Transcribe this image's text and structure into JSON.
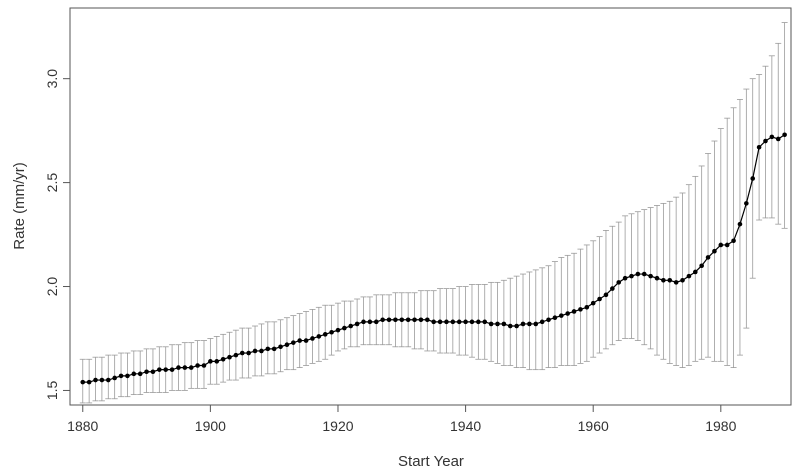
{
  "chart_data": {
    "type": "line",
    "title": "",
    "xlabel": "Start Year",
    "ylabel": "Rate (mm/yr)",
    "xlim": [
      1878,
      1991
    ],
    "ylim": [
      1.43,
      3.34
    ],
    "xticks": [
      1880,
      1900,
      1920,
      1940,
      1960,
      1980
    ],
    "yticks": [
      1.5,
      2.0,
      2.5,
      3.0
    ],
    "ytick_labels": [
      "1.5",
      "2.0",
      "2.5",
      "3.0"
    ],
    "grid": false,
    "legend": "none",
    "series": [
      {
        "x": [
          1880,
          1881,
          1882,
          1883,
          1884,
          1885,
          1886,
          1887,
          1888,
          1889,
          1890,
          1891,
          1892,
          1893,
          1894,
          1895,
          1896,
          1897,
          1898,
          1899,
          1900,
          1901,
          1902,
          1903,
          1904,
          1905,
          1906,
          1907,
          1908,
          1909,
          1910,
          1911,
          1912,
          1913,
          1914,
          1915,
          1916,
          1917,
          1918,
          1919,
          1920,
          1921,
          1922,
          1923,
          1924,
          1925,
          1926,
          1927,
          1928,
          1929,
          1930,
          1931,
          1932,
          1933,
          1934,
          1935,
          1936,
          1937,
          1938,
          1939,
          1940,
          1941,
          1942,
          1943,
          1944,
          1945,
          1946,
          1947,
          1948,
          1949,
          1950,
          1951,
          1952,
          1953,
          1954,
          1955,
          1956,
          1957,
          1958,
          1959,
          1960,
          1961,
          1962,
          1963,
          1964,
          1965,
          1966,
          1967,
          1968,
          1969,
          1970,
          1971,
          1972,
          1973,
          1974,
          1975,
          1976,
          1977,
          1978,
          1979,
          1980,
          1981,
          1982,
          1983,
          1984,
          1985,
          1986,
          1987,
          1988,
          1989,
          1990
        ],
        "y": [
          1.54,
          1.54,
          1.55,
          1.55,
          1.55,
          1.56,
          1.57,
          1.57,
          1.58,
          1.58,
          1.59,
          1.59,
          1.6,
          1.6,
          1.6,
          1.61,
          1.61,
          1.61,
          1.62,
          1.62,
          1.64,
          1.64,
          1.65,
          1.66,
          1.67,
          1.68,
          1.68,
          1.69,
          1.69,
          1.7,
          1.7,
          1.71,
          1.72,
          1.73,
          1.74,
          1.74,
          1.75,
          1.76,
          1.77,
          1.78,
          1.79,
          1.8,
          1.81,
          1.82,
          1.83,
          1.83,
          1.83,
          1.84,
          1.84,
          1.84,
          1.84,
          1.84,
          1.84,
          1.84,
          1.84,
          1.83,
          1.83,
          1.83,
          1.83,
          1.83,
          1.83,
          1.83,
          1.83,
          1.83,
          1.82,
          1.82,
          1.82,
          1.81,
          1.81,
          1.82,
          1.82,
          1.82,
          1.83,
          1.84,
          1.85,
          1.86,
          1.87,
          1.88,
          1.89,
          1.9,
          1.92,
          1.94,
          1.96,
          1.99,
          2.02,
          2.04,
          2.05,
          2.06,
          2.06,
          2.05,
          2.04,
          2.03,
          2.03,
          2.02,
          2.03,
          2.05,
          2.07,
          2.1,
          2.14,
          2.17,
          2.2,
          2.2,
          2.22,
          2.3,
          2.4,
          2.52,
          2.67,
          2.7,
          2.72,
          2.71,
          2.73
        ],
        "y_upper": [
          1.65,
          1.65,
          1.66,
          1.66,
          1.67,
          1.67,
          1.68,
          1.68,
          1.69,
          1.69,
          1.7,
          1.7,
          1.71,
          1.71,
          1.72,
          1.72,
          1.73,
          1.73,
          1.74,
          1.74,
          1.75,
          1.76,
          1.77,
          1.78,
          1.79,
          1.8,
          1.8,
          1.81,
          1.82,
          1.83,
          1.83,
          1.84,
          1.85,
          1.86,
          1.87,
          1.88,
          1.89,
          1.9,
          1.91,
          1.91,
          1.92,
          1.93,
          1.93,
          1.94,
          1.95,
          1.95,
          1.96,
          1.96,
          1.96,
          1.97,
          1.97,
          1.97,
          1.97,
          1.98,
          1.98,
          1.98,
          1.99,
          1.99,
          1.99,
          2.0,
          2.0,
          2.01,
          2.01,
          2.01,
          2.02,
          2.02,
          2.03,
          2.04,
          2.05,
          2.06,
          2.07,
          2.08,
          2.09,
          2.1,
          2.12,
          2.14,
          2.15,
          2.16,
          2.18,
          2.2,
          2.22,
          2.24,
          2.27,
          2.29,
          2.31,
          2.34,
          2.35,
          2.36,
          2.37,
          2.38,
          2.39,
          2.4,
          2.41,
          2.43,
          2.45,
          2.49,
          2.53,
          2.58,
          2.64,
          2.7,
          2.76,
          2.81,
          2.86,
          2.9,
          2.95,
          3.0,
          3.02,
          3.06,
          3.11,
          3.17,
          3.27
        ],
        "y_lower": [
          1.44,
          1.44,
          1.45,
          1.45,
          1.46,
          1.46,
          1.47,
          1.47,
          1.48,
          1.48,
          1.49,
          1.49,
          1.49,
          1.49,
          1.5,
          1.5,
          1.5,
          1.51,
          1.51,
          1.51,
          1.53,
          1.53,
          1.54,
          1.55,
          1.55,
          1.56,
          1.56,
          1.57,
          1.57,
          1.58,
          1.58,
          1.59,
          1.6,
          1.6,
          1.61,
          1.62,
          1.63,
          1.64,
          1.65,
          1.67,
          1.69,
          1.7,
          1.71,
          1.71,
          1.72,
          1.72,
          1.72,
          1.72,
          1.72,
          1.71,
          1.71,
          1.71,
          1.7,
          1.7,
          1.69,
          1.69,
          1.68,
          1.68,
          1.68,
          1.67,
          1.67,
          1.66,
          1.65,
          1.65,
          1.64,
          1.63,
          1.62,
          1.62,
          1.61,
          1.61,
          1.6,
          1.6,
          1.6,
          1.61,
          1.61,
          1.62,
          1.62,
          1.62,
          1.63,
          1.64,
          1.66,
          1.68,
          1.7,
          1.72,
          1.74,
          1.75,
          1.75,
          1.74,
          1.72,
          1.7,
          1.67,
          1.65,
          1.63,
          1.62,
          1.61,
          1.62,
          1.64,
          1.65,
          1.66,
          1.64,
          1.64,
          1.62,
          1.61,
          1.67,
          1.8,
          2.04,
          2.32,
          2.33,
          2.33,
          2.3,
          2.28
        ]
      }
    ]
  }
}
